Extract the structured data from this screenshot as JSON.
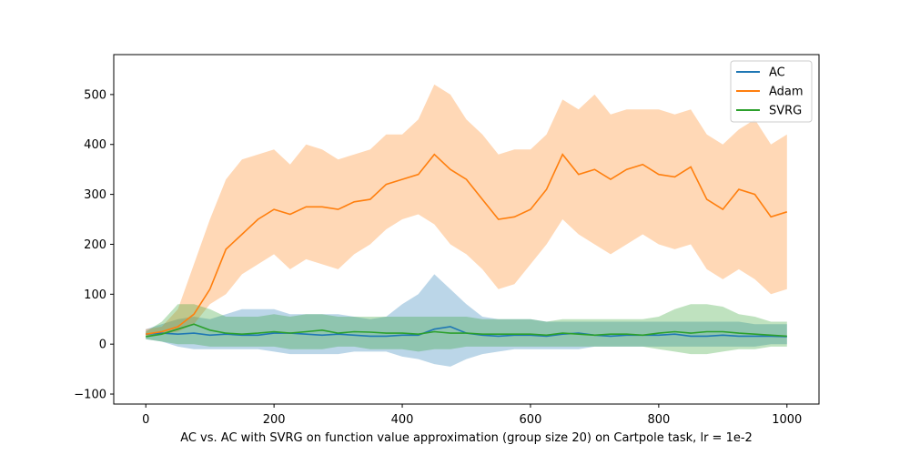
{
  "chart_data": {
    "type": "line",
    "title": "",
    "xlabel": "AC vs. AC with SVRG on function value approximation (group size 20) on Cartpole task, lr = 1e-2",
    "ylabel": "",
    "xlim": [
      -50,
      1050
    ],
    "ylim": [
      -120,
      580
    ],
    "xticks": [
      0,
      200,
      400,
      600,
      800,
      1000
    ],
    "yticks": [
      -100,
      0,
      100,
      200,
      300,
      400,
      500
    ],
    "legend_position": "top-right",
    "grid": false,
    "x": [
      0,
      25,
      50,
      75,
      100,
      125,
      150,
      175,
      200,
      225,
      250,
      275,
      300,
      325,
      350,
      375,
      400,
      425,
      450,
      475,
      500,
      525,
      550,
      575,
      600,
      625,
      650,
      675,
      700,
      725,
      750,
      775,
      800,
      825,
      850,
      875,
      900,
      925,
      950,
      975,
      1000
    ],
    "series": [
      {
        "name": "AC",
        "color": "#1f77b4",
        "mean": [
          20,
          22,
          20,
          22,
          18,
          20,
          18,
          18,
          22,
          22,
          20,
          18,
          20,
          18,
          16,
          16,
          18,
          18,
          30,
          35,
          22,
          18,
          16,
          18,
          18,
          16,
          20,
          22,
          18,
          16,
          18,
          18,
          18,
          20,
          16,
          16,
          18,
          16,
          16,
          16,
          15
        ],
        "lower": [
          10,
          5,
          -5,
          -10,
          -10,
          -10,
          -10,
          -10,
          -15,
          -20,
          -20,
          -20,
          -20,
          -15,
          -15,
          -15,
          -25,
          -30,
          -40,
          -45,
          -30,
          -20,
          -15,
          -10,
          -10,
          -10,
          -10,
          -10,
          -5,
          -5,
          -5,
          -5,
          -5,
          -5,
          -5,
          -5,
          -5,
          -5,
          -5,
          0,
          0
        ],
        "upper": [
          30,
          40,
          50,
          55,
          50,
          60,
          70,
          70,
          70,
          60,
          60,
          60,
          60,
          55,
          50,
          55,
          80,
          100,
          140,
          110,
          80,
          55,
          50,
          50,
          50,
          45,
          45,
          45,
          45,
          45,
          45,
          45,
          45,
          45,
          45,
          45,
          45,
          45,
          40,
          40,
          40
        ]
      },
      {
        "name": "Adam",
        "color": "#ff7f0e",
        "mean": [
          20,
          25,
          35,
          60,
          110,
          190,
          220,
          250,
          270,
          260,
          275,
          275,
          270,
          285,
          290,
          320,
          330,
          340,
          380,
          350,
          330,
          290,
          250,
          255,
          270,
          310,
          380,
          340,
          350,
          330,
          350,
          360,
          340,
          335,
          355,
          290,
          270,
          310,
          300,
          255,
          265
        ],
        "lower": [
          15,
          20,
          25,
          40,
          80,
          100,
          140,
          160,
          180,
          150,
          170,
          160,
          150,
          180,
          200,
          230,
          250,
          260,
          240,
          200,
          180,
          150,
          110,
          120,
          160,
          200,
          250,
          220,
          200,
          180,
          200,
          220,
          200,
          190,
          200,
          150,
          130,
          150,
          130,
          100,
          110
        ],
        "upper": [
          30,
          35,
          70,
          160,
          250,
          330,
          370,
          380,
          390,
          360,
          400,
          390,
          370,
          380,
          390,
          420,
          420,
          450,
          520,
          500,
          450,
          420,
          380,
          390,
          390,
          420,
          490,
          470,
          500,
          460,
          470,
          470,
          470,
          460,
          470,
          420,
          400,
          430,
          450,
          400,
          420
        ]
      },
      {
        "name": "SVRG",
        "color": "#2ca02c",
        "mean": [
          15,
          20,
          30,
          40,
          28,
          22,
          20,
          22,
          25,
          22,
          25,
          28,
          22,
          25,
          24,
          22,
          22,
          20,
          25,
          22,
          22,
          20,
          20,
          20,
          20,
          18,
          22,
          20,
          18,
          20,
          20,
          18,
          22,
          25,
          22,
          25,
          25,
          22,
          20,
          18,
          16
        ],
        "lower": [
          10,
          5,
          0,
          0,
          -5,
          -5,
          -5,
          -5,
          -5,
          -10,
          -10,
          -10,
          -5,
          -5,
          -10,
          -10,
          -10,
          -15,
          -10,
          -10,
          -5,
          -5,
          -5,
          -5,
          -5,
          -5,
          -5,
          -5,
          -5,
          -5,
          -5,
          -5,
          -10,
          -15,
          -20,
          -20,
          -15,
          -10,
          -10,
          -5,
          -5
        ],
        "upper": [
          25,
          45,
          80,
          80,
          70,
          55,
          55,
          55,
          60,
          55,
          60,
          60,
          55,
          55,
          55,
          55,
          55,
          55,
          55,
          55,
          55,
          50,
          50,
          50,
          50,
          45,
          50,
          50,
          50,
          50,
          50,
          50,
          55,
          70,
          80,
          80,
          75,
          60,
          55,
          45,
          45
        ]
      }
    ]
  }
}
